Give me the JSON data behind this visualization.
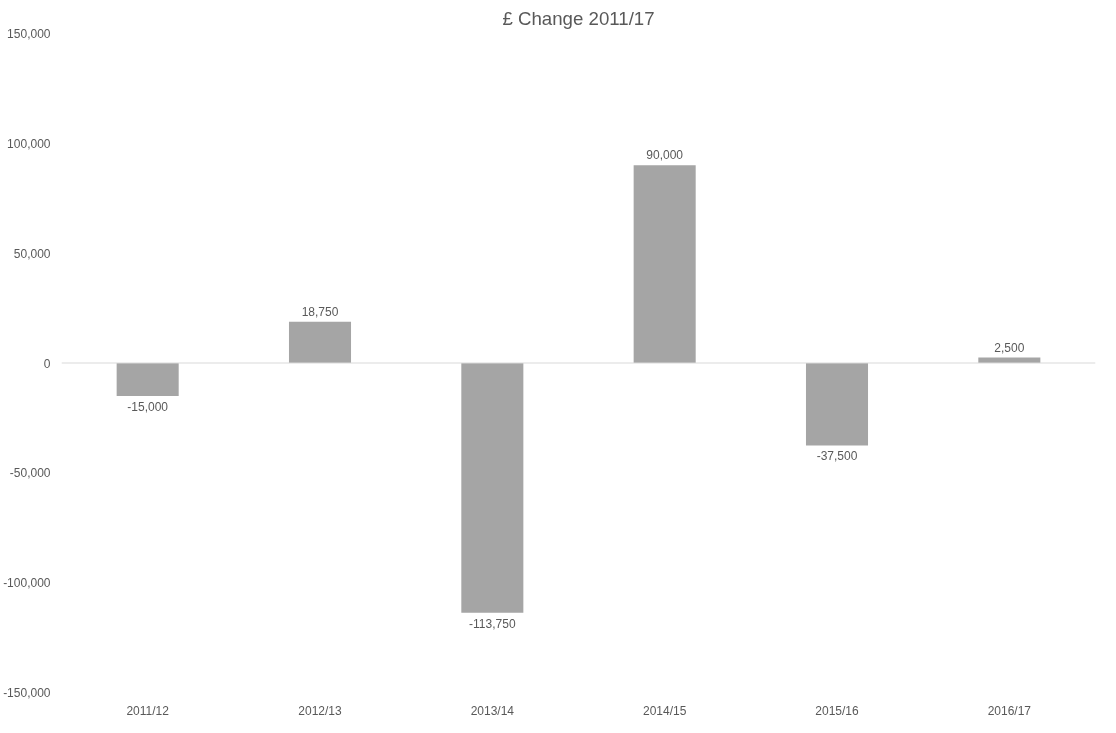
{
  "chart_data": {
    "type": "bar",
    "title": "£ Change 2011/17",
    "categories": [
      "2011/12",
      "2012/13",
      "2013/14",
      "2014/15",
      "2015/16",
      "2016/17"
    ],
    "values": [
      -15000,
      18750,
      -113750,
      90000,
      -37500,
      2500
    ],
    "color": "#a5a5a5",
    "ylim": [
      -150000,
      150000
    ],
    "yticks": [
      {
        "value": -150000,
        "label": "-150,000"
      },
      {
        "value": -100000,
        "label": "-100,000"
      },
      {
        "value": -50000,
        "label": "-50,000"
      },
      0,
      {
        "value": 50000,
        "label": "50,000"
      },
      {
        "value": 100000,
        "label": "100,000"
      },
      {
        "value": 150000,
        "label": "150,000"
      }
    ],
    "value_labels": [
      "-15,000",
      "18,750",
      "-113,750",
      "90,000",
      "-37,500",
      "2,500"
    ],
    "tick_labels": true
  }
}
